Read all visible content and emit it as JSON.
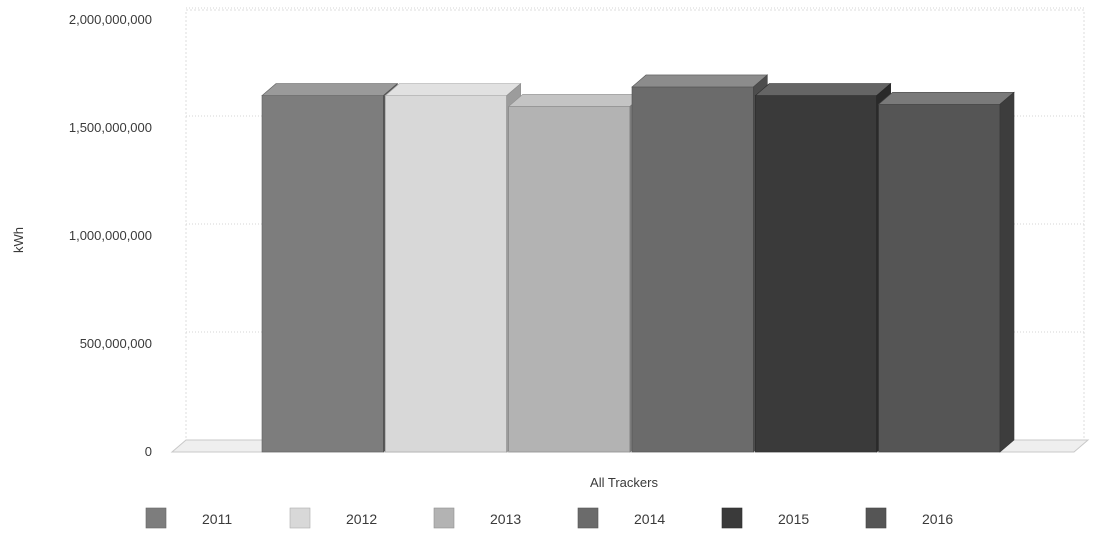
{
  "chart_data": {
    "type": "bar",
    "title": "",
    "xlabel": "All Trackers",
    "ylabel": "kWh",
    "categories": [
      "All Trackers"
    ],
    "ylim": [
      0,
      2000000000
    ],
    "yticks": [
      0,
      500000000,
      1000000000,
      1500000000,
      2000000000
    ],
    "ytick_labels": [
      "0",
      "500,000,000",
      "1,000,000,000",
      "1,500,000,000",
      "2,000,000,000"
    ],
    "grid": true,
    "legend_position": "bottom",
    "series": [
      {
        "name": "2011",
        "values": [
          1650000000
        ],
        "color": "#7d7d7d"
      },
      {
        "name": "2012",
        "values": [
          1650000000
        ],
        "color": "#d8d8d8"
      },
      {
        "name": "2013",
        "values": [
          1600000000
        ],
        "color": "#b3b3b3"
      },
      {
        "name": "2014",
        "values": [
          1690000000
        ],
        "color": "#6b6b6b"
      },
      {
        "name": "2015",
        "values": [
          1650000000
        ],
        "color": "#3a3a3a"
      },
      {
        "name": "2016",
        "values": [
          1610000000
        ],
        "color": "#555555"
      }
    ]
  }
}
